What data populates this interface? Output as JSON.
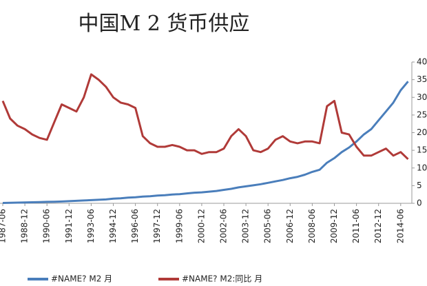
{
  "chart_data": {
    "type": "line",
    "title": "中国M 2 货币供应",
    "categories": [
      "1987-06",
      null,
      null,
      "1988-12",
      null,
      null,
      "1990-06",
      null,
      null,
      "1991-12",
      null,
      null,
      "1993-06",
      null,
      null,
      "1994-12",
      null,
      null,
      "1996-06",
      null,
      null,
      "1997-12",
      null,
      null,
      "1999-06",
      null,
      null,
      "2000-12",
      null,
      null,
      "2002-06",
      null,
      null,
      "2003-12",
      null,
      null,
      "2005-06",
      null,
      null,
      "2006-12",
      null,
      null,
      "2008-06",
      null,
      null,
      "2009-12",
      null,
      null,
      "2011-06",
      null,
      null,
      "2012-12",
      null,
      null,
      "2014-06",
      null
    ],
    "series": [
      {
        "name": "#NAME? M2 月",
        "color": "#4a7ebb",
        "values": [
          0.1,
          0.15,
          0.2,
          0.25,
          0.3,
          0.35,
          0.4,
          0.45,
          0.5,
          0.6,
          0.7,
          0.8,
          0.9,
          1.0,
          1.1,
          1.3,
          1.4,
          1.6,
          1.7,
          1.9,
          2.0,
          2.2,
          2.3,
          2.5,
          2.6,
          2.8,
          3.0,
          3.1,
          3.3,
          3.5,
          3.8,
          4.1,
          4.5,
          4.8,
          5.1,
          5.4,
          5.8,
          6.2,
          6.6,
          7.1,
          7.5,
          8.1,
          8.9,
          9.5,
          11.5,
          12.8,
          14.5,
          15.8,
          17.5,
          19.5,
          21,
          23.5,
          26,
          28.5,
          32,
          34.5
        ]
      },
      {
        "name": "#NAME? M2:同比 月",
        "color": "#b03a38",
        "values": [
          29,
          24,
          22,
          21,
          19.5,
          18.5,
          18,
          23,
          28,
          27,
          26,
          30,
          36.5,
          35,
          33,
          30,
          28.5,
          28,
          27,
          19,
          17,
          16,
          16,
          16.5,
          16,
          15,
          15,
          14,
          14.5,
          14.5,
          15.5,
          19,
          21,
          19,
          15,
          14.5,
          15.5,
          18,
          19,
          17.5,
          17,
          17.5,
          17.5,
          17,
          27.5,
          29,
          20,
          19.5,
          16,
          13.5,
          13.5,
          14.5,
          15.5,
          13.5,
          14.5,
          12.5
        ]
      }
    ],
    "ylim": [
      0,
      40
    ],
    "yticks": [
      0,
      5,
      10,
      15,
      20,
      25,
      30,
      35,
      40
    ]
  }
}
